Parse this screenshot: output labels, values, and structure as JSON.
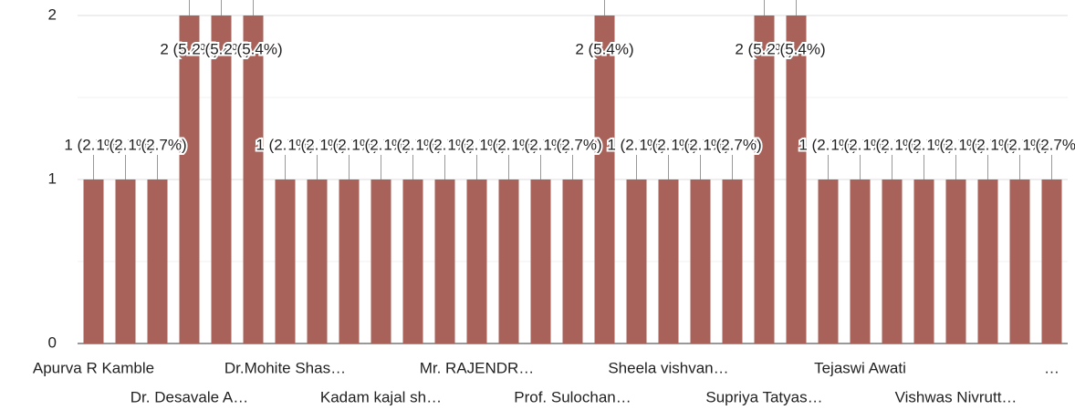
{
  "chart_data": {
    "type": "bar",
    "categories": [
      "Apurva R Kamble",
      null,
      null,
      "Dr. Desavale A…",
      null,
      null,
      "Dr.Mohite Shas…",
      null,
      null,
      "Kadam kajal sh…",
      null,
      null,
      "Mr. RAJENDR…",
      null,
      null,
      "Prof. Sulochan…",
      null,
      null,
      "Sheela vishvan…",
      null,
      null,
      "Supriya Tatyas…",
      null,
      null,
      "Tejaswi Awati",
      null,
      null,
      "Vishwas Nivrutt…",
      null,
      null,
      "…"
    ],
    "values": [
      1,
      1,
      1,
      2,
      2,
      2,
      1,
      1,
      1,
      1,
      1,
      1,
      1,
      1,
      1,
      1,
      2,
      1,
      1,
      1,
      1,
      2,
      2,
      1,
      1,
      1,
      1,
      1,
      1,
      1,
      1
    ],
    "value_labels": [
      "1 (2.7%)",
      "1 (2.7%)",
      "1 (2.7%)",
      "2 (5.4%)",
      "2 (5.4%)",
      "2 (5.4%)",
      "1 (2.7%)",
      "1 (2.7%)",
      "1 (2.7%)",
      "1 (2.7%)",
      "1 (2.7%)",
      "1 (2.7%)",
      "1 (2.7%)",
      "1 (2.7%)",
      "1 (2.7%)",
      "1 (2.7%)",
      "2 (5.4%)",
      "1 (2.7%)",
      "1 (2.7%)",
      "1 (2.7%)",
      "1 (2.7%)",
      "2 (5.4%)",
      "2 (5.4%)",
      "1 (2.7%)",
      "1 (2.7%)",
      "1 (2.7%)",
      "1 (2.7%)",
      "1 (2.7%)",
      "1 (2.7%)",
      "1 (2.7%)",
      "1 (2.7%)"
    ],
    "color": "#a8625a",
    "ylim": [
      0,
      2
    ],
    "yticks": [
      0,
      1,
      2
    ],
    "minor_yticks": [
      0.5,
      1.5
    ],
    "grid": true
  }
}
